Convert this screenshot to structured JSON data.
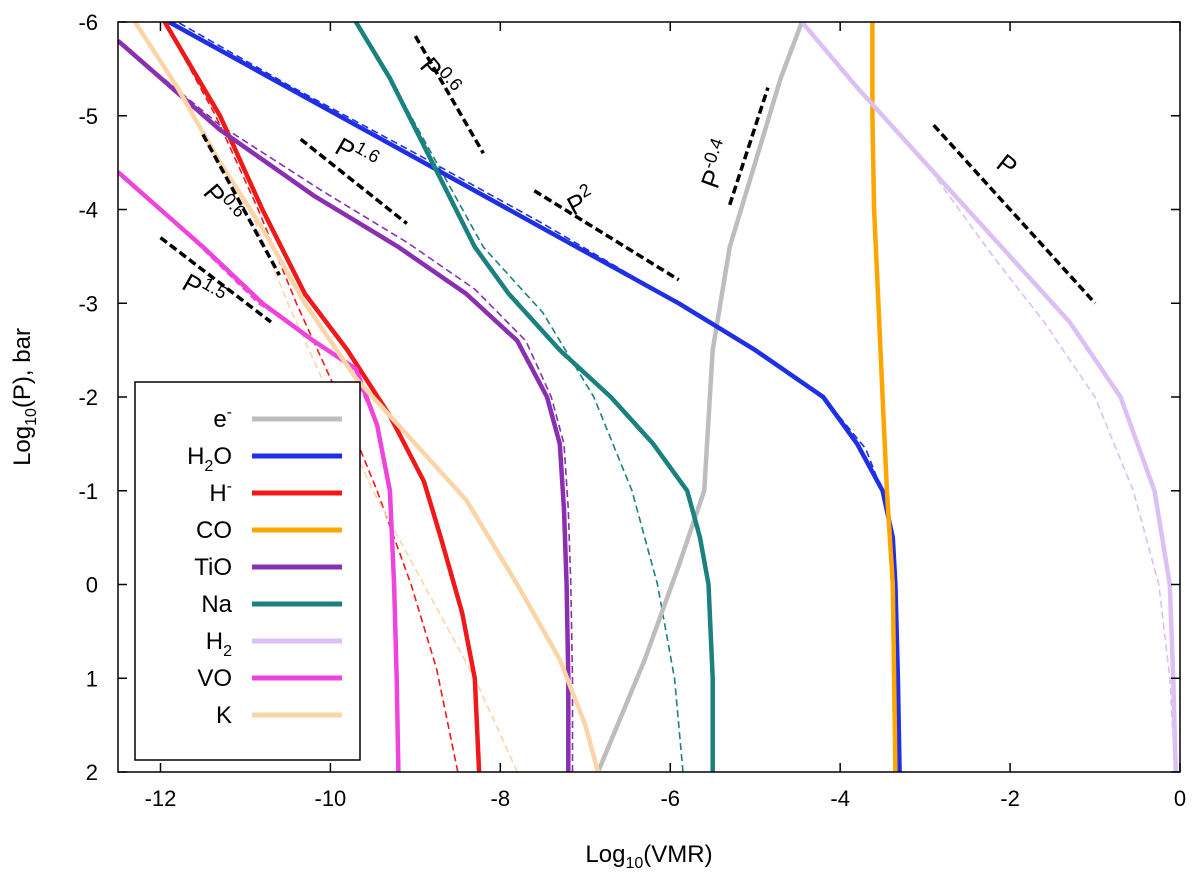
{
  "chart_data": {
    "type": "line",
    "title": "",
    "xlabel": {
      "prefix": "Log",
      "sub": "10",
      "suffix": "(VMR)"
    },
    "ylabel": {
      "prefix": "Log",
      "sub": "10",
      "suffix": "(P), bar"
    },
    "xlim": [
      -12.5,
      0
    ],
    "ylim": [
      -6,
      2
    ],
    "y_inverted_display": true,
    "x_ticks": [
      -12,
      -10,
      -8,
      -6,
      -4,
      -2,
      0
    ],
    "x_tick_labels": [
      "-12",
      "-10",
      "-8",
      "-6",
      "-4",
      "-2",
      "0"
    ],
    "y_ticks": [
      -6,
      -5,
      -4,
      -3,
      -2,
      -1,
      0,
      1,
      2
    ],
    "y_tick_labels": [
      "-6",
      "-5",
      "-4",
      "-3",
      "-2",
      "-1",
      "0",
      "1",
      "2"
    ],
    "legend_position": "bottom-left",
    "series": [
      {
        "name": "e-",
        "label_main": "e",
        "label_sub": "",
        "label_sup": "-",
        "color": "#bdbdbd",
        "solid": [
          [
            -6.85,
            2
          ],
          [
            -6.3,
            0.8
          ],
          [
            -5.9,
            -0.2
          ],
          [
            -5.6,
            -1.0
          ],
          [
            -5.5,
            -2.5
          ],
          [
            -5.3,
            -3.6
          ],
          [
            -5.0,
            -4.5
          ],
          [
            -4.7,
            -5.4
          ],
          [
            -4.45,
            -6
          ]
        ],
        "dashed": []
      },
      {
        "name": "H2O",
        "label_main": "H",
        "label_sub": "2",
        "label_sup": "",
        "label_tail": "O",
        "color": "#1f2fe6",
        "solid": [
          [
            -3.3,
            2
          ],
          [
            -3.32,
            1.0
          ],
          [
            -3.35,
            0.0
          ],
          [
            -3.38,
            -0.5
          ],
          [
            -3.5,
            -1.0
          ],
          [
            -3.8,
            -1.5
          ],
          [
            -4.2,
            -2.0
          ],
          [
            -5.0,
            -2.5
          ],
          [
            -5.9,
            -3.0
          ],
          [
            -7.5,
            -3.8
          ],
          [
            -9.0,
            -4.55
          ],
          [
            -10.5,
            -5.3
          ],
          [
            -11.9,
            -6
          ]
        ],
        "dashed": [
          [
            -3.3,
            2
          ],
          [
            -3.33,
            1.0
          ],
          [
            -3.36,
            0.0
          ],
          [
            -3.42,
            -0.8
          ],
          [
            -3.7,
            -1.45
          ],
          [
            -4.2,
            -2.0
          ],
          [
            -5.0,
            -2.5
          ],
          [
            -5.9,
            -3.0
          ],
          [
            -7.5,
            -3.85
          ],
          [
            -9.0,
            -4.6
          ],
          [
            -10.5,
            -5.33
          ],
          [
            -11.8,
            -6
          ]
        ]
      },
      {
        "name": "H-",
        "label_main": "H",
        "label_sub": "",
        "label_sup": "-",
        "color": "#f01818",
        "solid": [
          [
            -8.25,
            2
          ],
          [
            -8.3,
            1.0
          ],
          [
            -8.45,
            0.3
          ],
          [
            -8.7,
            -0.5
          ],
          [
            -8.9,
            -1.1
          ],
          [
            -9.3,
            -1.8
          ],
          [
            -9.8,
            -2.5
          ],
          [
            -10.3,
            -3.1
          ],
          [
            -10.8,
            -4.0
          ],
          [
            -11.3,
            -5.0
          ],
          [
            -11.95,
            -6
          ]
        ],
        "dashed": [
          [
            -8.5,
            2
          ],
          [
            -8.75,
            0.9
          ],
          [
            -9.05,
            0.0
          ],
          [
            -9.45,
            -1.0
          ],
          [
            -9.9,
            -2.0
          ],
          [
            -10.4,
            -3.0
          ],
          [
            -10.85,
            -4.0
          ],
          [
            -11.35,
            -5.0
          ],
          [
            -11.95,
            -6
          ]
        ]
      },
      {
        "name": "CO",
        "label_main": "CO",
        "label_sub": "",
        "label_sup": "",
        "color": "#ffa500",
        "solid": [
          [
            -3.35,
            2
          ],
          [
            -3.38,
            0.0
          ],
          [
            -3.45,
            -1.0
          ],
          [
            -3.5,
            -2.0
          ],
          [
            -3.55,
            -3.0
          ],
          [
            -3.6,
            -4.0
          ],
          [
            -3.62,
            -5.0
          ],
          [
            -3.62,
            -6
          ]
        ],
        "dashed": []
      },
      {
        "name": "TiO",
        "label_main": "TiO",
        "label_sub": "",
        "label_sup": "",
        "color": "#8a2fb0",
        "solid": [
          [
            -7.2,
            2
          ],
          [
            -7.2,
            1.0
          ],
          [
            -7.22,
            0.0
          ],
          [
            -7.25,
            -0.8
          ],
          [
            -7.3,
            -1.5
          ],
          [
            -7.45,
            -2.0
          ],
          [
            -7.8,
            -2.6
          ],
          [
            -8.4,
            -3.1
          ],
          [
            -9.2,
            -3.6
          ],
          [
            -10.2,
            -4.15
          ],
          [
            -11.3,
            -4.85
          ],
          [
            -12.5,
            -5.8
          ]
        ],
        "dashed": [
          [
            -7.15,
            2
          ],
          [
            -7.15,
            1.0
          ],
          [
            -7.17,
            0.0
          ],
          [
            -7.2,
            -0.8
          ],
          [
            -7.25,
            -1.5
          ],
          [
            -7.4,
            -2.0
          ],
          [
            -7.7,
            -2.6
          ],
          [
            -8.3,
            -3.15
          ],
          [
            -9.1,
            -3.65
          ],
          [
            -10.1,
            -4.2
          ],
          [
            -11.3,
            -4.9
          ],
          [
            -12.5,
            -5.8
          ]
        ]
      },
      {
        "name": "Na",
        "label_main": "Na",
        "label_sub": "",
        "label_sup": "",
        "color": "#1a8080",
        "solid": [
          [
            -5.5,
            2
          ],
          [
            -5.5,
            1.0
          ],
          [
            -5.55,
            0.0
          ],
          [
            -5.65,
            -0.5
          ],
          [
            -5.8,
            -1.0
          ],
          [
            -6.2,
            -1.5
          ],
          [
            -6.7,
            -2.0
          ],
          [
            -7.3,
            -2.5
          ],
          [
            -7.9,
            -3.1
          ],
          [
            -8.3,
            -3.6
          ],
          [
            -8.8,
            -4.5
          ],
          [
            -9.3,
            -5.4
          ],
          [
            -9.7,
            -6
          ]
        ],
        "dashed": [
          [
            -5.85,
            2
          ],
          [
            -5.95,
            1.0
          ],
          [
            -6.15,
            0.0
          ],
          [
            -6.45,
            -1.0
          ],
          [
            -6.9,
            -2.0
          ],
          [
            -7.5,
            -2.9
          ],
          [
            -8.2,
            -3.6
          ],
          [
            -8.75,
            -4.5
          ],
          [
            -9.3,
            -5.4
          ],
          [
            -9.7,
            -6
          ]
        ]
      },
      {
        "name": "H2",
        "label_main": "H",
        "label_sub": "2",
        "label_sup": "",
        "color": "#dcc0f4",
        "solid": [
          [
            -0.05,
            2
          ],
          [
            -0.08,
            1.0
          ],
          [
            -0.12,
            0.0
          ],
          [
            -0.3,
            -1.0
          ],
          [
            -0.7,
            -2.0
          ],
          [
            -1.3,
            -2.8
          ],
          [
            -2.1,
            -3.6
          ],
          [
            -3.0,
            -4.5
          ],
          [
            -3.8,
            -5.3
          ],
          [
            -4.45,
            -6
          ]
        ],
        "dashed": [
          [
            -0.06,
            2
          ],
          [
            -0.12,
            1.0
          ],
          [
            -0.25,
            0.0
          ],
          [
            -0.55,
            -1.0
          ],
          [
            -1.0,
            -2.0
          ],
          [
            -1.6,
            -2.8
          ],
          [
            -2.2,
            -3.5
          ],
          [
            -3.0,
            -4.5
          ],
          [
            -3.8,
            -5.3
          ],
          [
            -4.45,
            -6
          ]
        ]
      },
      {
        "name": "VO",
        "label_main": "VO",
        "label_sub": "",
        "label_sup": "",
        "color": "#ee44dd",
        "solid": [
          [
            -9.2,
            2
          ],
          [
            -9.22,
            1.0
          ],
          [
            -9.25,
            0.0
          ],
          [
            -9.3,
            -1.0
          ],
          [
            -9.45,
            -1.7
          ],
          [
            -9.7,
            -2.3
          ],
          [
            -10.2,
            -2.6
          ],
          [
            -10.8,
            -3.0
          ],
          [
            -11.5,
            -3.6
          ],
          [
            -12.5,
            -4.4
          ]
        ],
        "dashed": [
          [
            -9.2,
            2
          ],
          [
            -9.22,
            1.0
          ],
          [
            -9.25,
            0.0
          ],
          [
            -9.3,
            -1.0
          ],
          [
            -9.45,
            -1.7
          ],
          [
            -9.75,
            -2.3
          ],
          [
            -10.25,
            -2.65
          ],
          [
            -10.85,
            -3.0
          ],
          [
            -11.55,
            -3.62
          ],
          [
            -12.5,
            -4.4
          ]
        ]
      },
      {
        "name": "K",
        "label_main": "K",
        "label_sub": "",
        "label_sup": "",
        "color": "#fbd5a8",
        "solid": [
          [
            -6.85,
            2
          ],
          [
            -7.0,
            1.5
          ],
          [
            -7.3,
            0.8
          ],
          [
            -7.8,
            0.0
          ],
          [
            -8.4,
            -0.9
          ],
          [
            -9.0,
            -1.5
          ],
          [
            -9.7,
            -2.2
          ],
          [
            -10.3,
            -3.0
          ],
          [
            -10.8,
            -3.8
          ],
          [
            -11.3,
            -4.5
          ],
          [
            -11.8,
            -5.3
          ],
          [
            -12.3,
            -6
          ]
        ],
        "dashed": [
          [
            -7.8,
            2
          ],
          [
            -8.3,
            1.0
          ],
          [
            -8.9,
            0.0
          ],
          [
            -9.5,
            -1.0
          ],
          [
            -10.0,
            -2.0
          ],
          [
            -10.5,
            -3.0
          ],
          [
            -10.9,
            -3.9
          ],
          [
            -11.35,
            -4.6
          ],
          [
            -11.85,
            -5.35
          ],
          [
            -12.3,
            -6
          ]
        ]
      }
    ],
    "slope_annotations": [
      {
        "base": "P",
        "exp": "1.5",
        "from": [
          -12.0,
          -3.7
        ],
        "to": [
          -10.7,
          -2.8
        ],
        "text_at": [
          -11.55,
          -3.05
        ],
        "angle": 30
      },
      {
        "base": "P",
        "exp": "0.6",
        "from": [
          -11.5,
          -4.8
        ],
        "to": [
          -10.6,
          -3.3
        ],
        "text_at": [
          -11.35,
          -4.0
        ],
        "angle": 50
      },
      {
        "base": "P",
        "exp": "1.6",
        "from": [
          -10.35,
          -4.75
        ],
        "to": [
          -9.1,
          -3.85
        ],
        "text_at": [
          -9.75,
          -4.5
        ],
        "angle": 30
      },
      {
        "base": "P",
        "exp": "0.6",
        "from": [
          -9.0,
          -5.85
        ],
        "to": [
          -8.2,
          -4.6
        ],
        "text_at": [
          -8.8,
          -5.35
        ],
        "angle": 50
      },
      {
        "base": "P",
        "exp": "2",
        "from": [
          -7.6,
          -4.2
        ],
        "to": [
          -5.9,
          -3.25
        ],
        "text_at": [
          -7.0,
          -4.0
        ],
        "angle": -28
      },
      {
        "base": "P",
        "exp": "-0.4",
        "from": [
          -5.3,
          -4.05
        ],
        "to": [
          -4.85,
          -5.3
        ],
        "text_at": [
          -5.35,
          -4.45
        ],
        "angle": -70
      },
      {
        "base": "P",
        "exp": "",
        "from": [
          -2.9,
          -4.9
        ],
        "to": [
          -1.0,
          -3.0
        ],
        "text_at": [
          -2.1,
          -4.4
        ],
        "angle": 38
      }
    ]
  }
}
